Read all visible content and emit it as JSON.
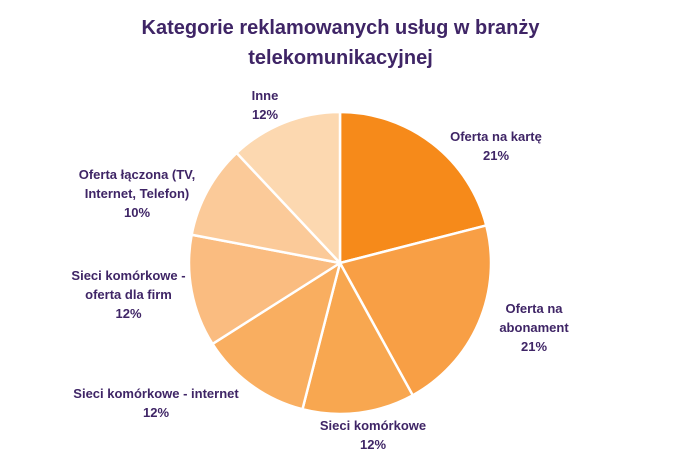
{
  "header": {
    "title_lines": [
      "Kategorie reklamowanych usług w branży",
      "telekomunikacyjnej"
    ]
  },
  "chart_data": {
    "type": "pie",
    "title": "Kategorie reklamowanych usług w branży telekomunikacyjnej",
    "categories": [
      "Oferta na kartę",
      "Oferta na abonament",
      "Sieci komórkowe",
      "Sieci komórkowe - internet",
      "Sieci komórkowe - oferta dla firm",
      "Oferta łączona (TV, Internet, Telefon)",
      "Inne"
    ],
    "values": [
      21,
      21,
      12,
      12,
      12,
      10,
      12
    ],
    "unit": "%",
    "colors": [
      "#F68A1A",
      "#F89F45",
      "#F8A750",
      "#F9AE60",
      "#FABC80",
      "#FBCA99",
      "#FCD8B0"
    ],
    "slice_border_color": "#FFFFFF",
    "start_angle_deg": -90,
    "direction": "clockwise",
    "legend": "none",
    "title_color": "#3F2566",
    "label_color": "#3F2566",
    "labels": [
      {
        "name": "Oferta na kartę",
        "pct": "21%"
      },
      {
        "name": "Oferta na abonament",
        "pct": "21%"
      },
      {
        "name": "Sieci komórkowe",
        "pct": "12%"
      },
      {
        "name": "Sieci komórkowe - internet",
        "pct": "12%"
      },
      {
        "name": "Sieci komórkowe - oferta dla firm",
        "pct": "12%"
      },
      {
        "name": "Oferta łączona (TV, Internet, Telefon)",
        "pct": "10%"
      },
      {
        "name": "Inne",
        "pct": "12%"
      }
    ]
  }
}
